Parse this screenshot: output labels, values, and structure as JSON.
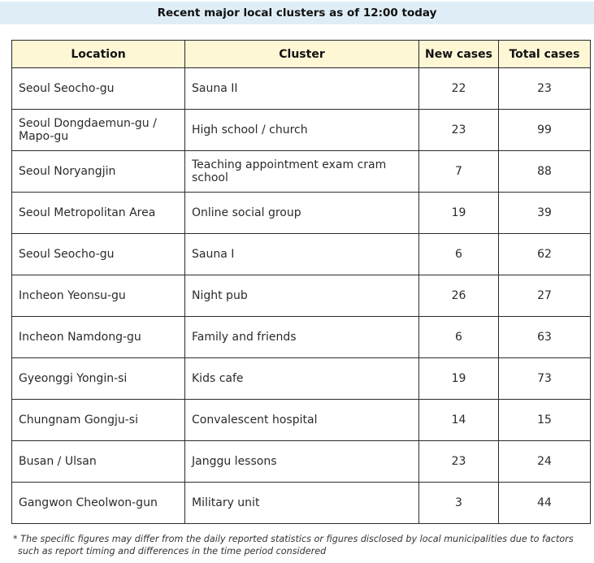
{
  "title": "Recent major local clusters as of 12:00 today",
  "table": {
    "headers": [
      "Location",
      "Cluster",
      "New cases",
      "Total cases"
    ],
    "rows": [
      [
        "Seoul Seocho-gu",
        "Sauna II",
        "22",
        "23"
      ],
      [
        "Seoul Dongdaemun-gu / Mapo-gu",
        "High school / church",
        "23",
        "99"
      ],
      [
        "Seoul Noryangjin",
        "Teaching appointment exam cram school",
        "7",
        "88"
      ],
      [
        "Seoul Metropolitan Area",
        "Online social group",
        "19",
        "39"
      ],
      [
        "Seoul Seocho-gu",
        "Sauna I",
        "6",
        "62"
      ],
      [
        "Incheon Yeonsu-gu",
        "Night pub",
        "26",
        "27"
      ],
      [
        "Incheon Namdong-gu",
        "Family and friends",
        "6",
        "63"
      ],
      [
        "Gyeonggi Yongin-si",
        "Kids cafe",
        "19",
        "73"
      ],
      [
        "Chungnam Gongju-si",
        "Convalescent hospital",
        "14",
        "15"
      ],
      [
        "Busan / Ulsan",
        "Janggu lessons",
        "23",
        "24"
      ],
      [
        "Gangwon Cheolwon-gun",
        "Military unit",
        "3",
        "44"
      ]
    ]
  },
  "footnote": "* The specific figures may differ from the daily reported statistics or figures disclosed by local municipalities due to factors such as report timing and differences in the time period considered",
  "colors": {
    "title_background": "#dfeef6",
    "header_background": "#fef7d5",
    "border": "#2b2b2b"
  }
}
